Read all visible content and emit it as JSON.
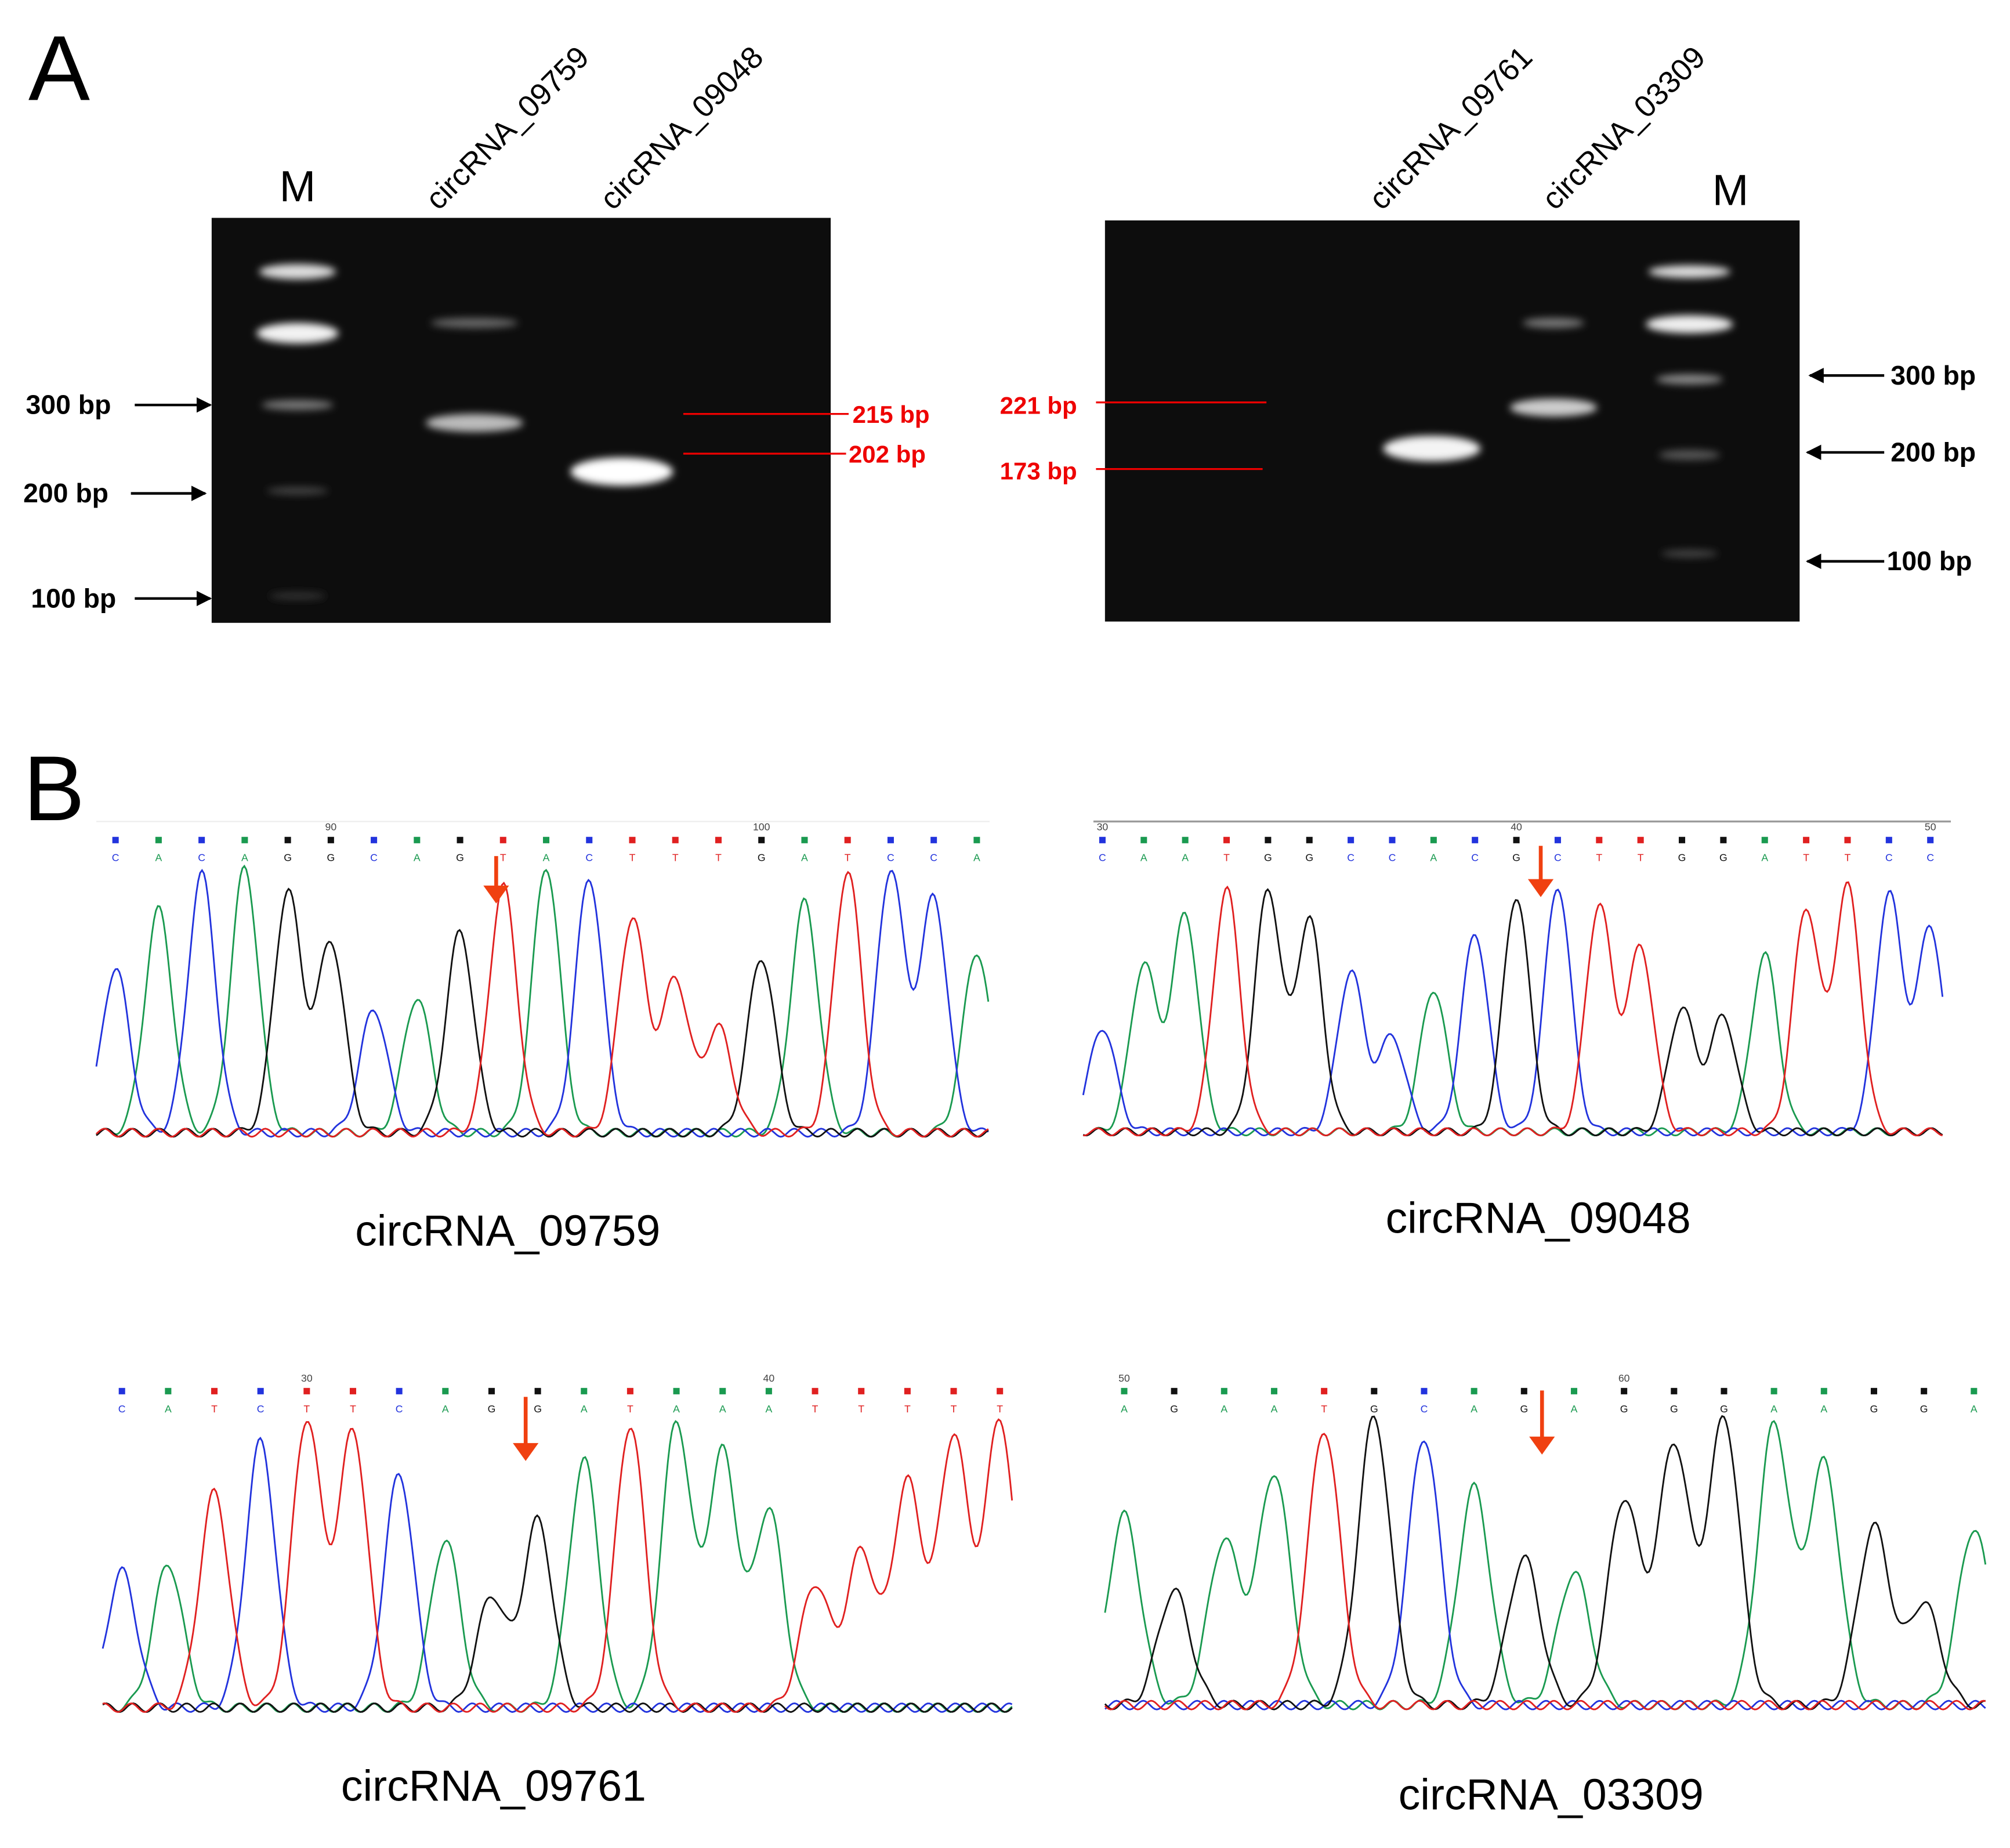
{
  "panel_a": {
    "label": "A",
    "gels": [
      {
        "lanes": [
          "M",
          "circRNA_09759",
          "circRNA_09048"
        ],
        "markers": [
          "300 bp",
          "200 bp",
          "100 bp"
        ],
        "sizes": [
          "215 bp",
          "202 bp"
        ]
      },
      {
        "lanes": [
          "circRNA_09761",
          "circRNA_03309",
          "M"
        ],
        "markers": [
          "300 bp",
          "200 bp",
          "100 bp"
        ],
        "sizes": [
          "221 bp",
          "173 bp"
        ]
      }
    ]
  },
  "panel_b": {
    "label": "B",
    "chromatograms": [
      {
        "caption": "circRNA_09759",
        "bases": "CACAGGCAGTACTTTGATCCA",
        "positions": [
          null,
          null,
          null,
          null,
          null,
          90,
          null,
          null,
          null,
          null,
          null,
          null,
          null,
          null,
          null,
          100,
          null,
          null,
          null,
          null,
          null
        ]
      },
      {
        "caption": "circRNA_09048",
        "bases": "CAATGGCCACGCTTGGATTCC",
        "positions": [
          30,
          null,
          null,
          null,
          null,
          null,
          null,
          null,
          null,
          null,
          40,
          null,
          null,
          null,
          null,
          null,
          null,
          null,
          null,
          null,
          50
        ]
      },
      {
        "caption": "circRNA_09761",
        "bases": "CATCTTCAGGATAAATTTTT",
        "positions": [
          null,
          null,
          null,
          null,
          30,
          null,
          null,
          null,
          null,
          null,
          null,
          null,
          null,
          null,
          40,
          null,
          null,
          null,
          null,
          null
        ]
      },
      {
        "caption": "circRNA_03309",
        "bases": "AGAATGCAGAGGGAAGGA",
        "positions": [
          50,
          null,
          null,
          null,
          null,
          null,
          null,
          null,
          null,
          null,
          60,
          null,
          null,
          null,
          null,
          null,
          null,
          null
        ]
      }
    ]
  }
}
